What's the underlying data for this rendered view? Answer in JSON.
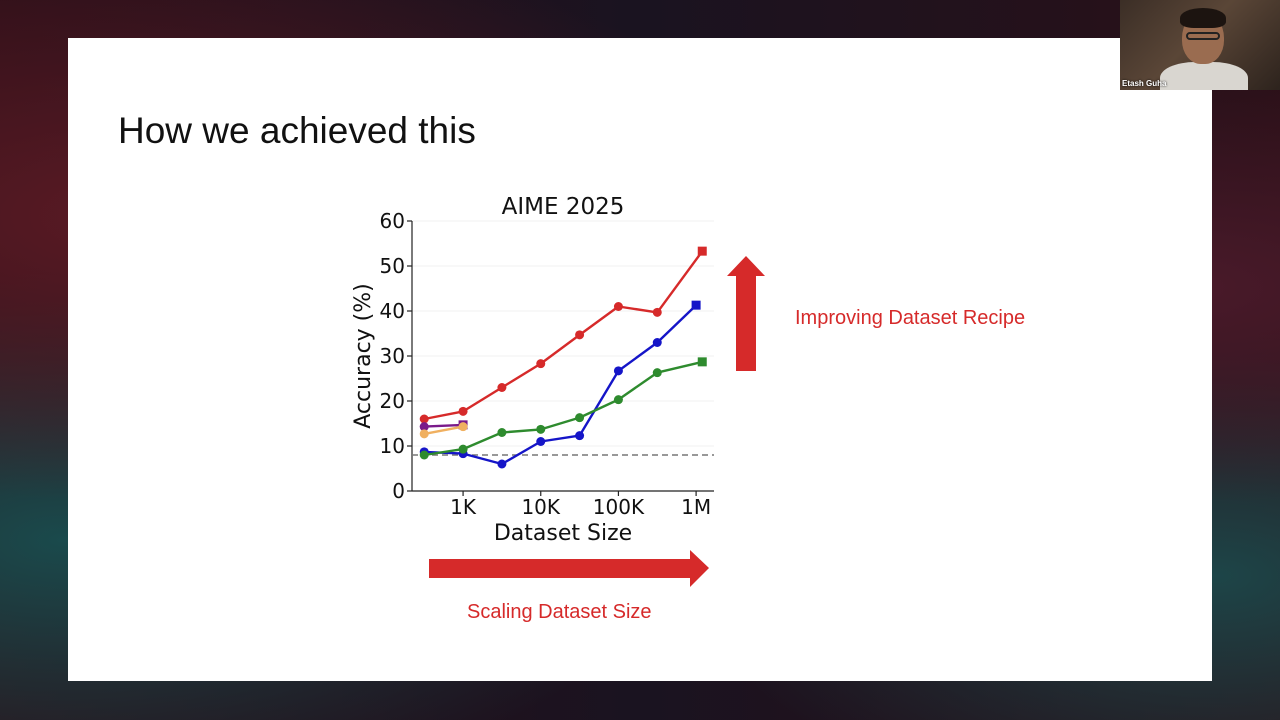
{
  "slide": {
    "title": "How we achieved this",
    "recipe_arrow_label": "Improving Dataset Recipe",
    "scaling_arrow_label": "Scaling Dataset Size"
  },
  "video": {
    "participant_name": "Etash Guha"
  },
  "colors": {
    "accent_red": "#d62a2a",
    "series_red": "#d62a2a",
    "series_blue": "#1515c8",
    "series_green": "#2e8b2e",
    "series_purple": "#7a1a8a",
    "series_orange": "#f0b060"
  },
  "chart_data": {
    "type": "line",
    "title": "AIME 2025",
    "xlabel": "Dataset Size",
    "ylabel": "Accuracy (%)",
    "x_scale": "log",
    "xlim": [
      220,
      1700000
    ],
    "ylim": [
      0,
      60
    ],
    "x_ticks": [
      {
        "value": 1000,
        "label": "1K"
      },
      {
        "value": 10000,
        "label": "10K"
      },
      {
        "value": 100000,
        "label": "100K"
      },
      {
        "value": 1000000,
        "label": "1M"
      }
    ],
    "y_ticks": [
      0,
      10,
      20,
      30,
      40,
      50,
      60
    ],
    "baseline": 8,
    "grid": "horizontal",
    "series": [
      {
        "color": "#d62a2a",
        "x": [
          316,
          1000,
          3162,
          10000,
          31623,
          100000,
          316228,
          1200000
        ],
        "y": [
          16,
          17.7,
          23,
          28.3,
          34.7,
          41,
          39.7,
          53.3
        ],
        "last_marker": "square"
      },
      {
        "color": "#1515c8",
        "x": [
          316,
          1000,
          3162,
          10000,
          31623,
          100000,
          316228,
          1000000
        ],
        "y": [
          8.7,
          8.3,
          6,
          11,
          12.3,
          26.7,
          33,
          41.3
        ],
        "last_marker": "square"
      },
      {
        "color": "#2e8b2e",
        "x": [
          316,
          1000,
          3162,
          10000,
          31623,
          100000,
          316228,
          1200000
        ],
        "y": [
          8,
          9.3,
          13,
          13.7,
          16.3,
          20.3,
          26.3,
          28.7
        ],
        "last_marker": "square"
      },
      {
        "color": "#7a1a8a",
        "x": [
          316,
          1000
        ],
        "y": [
          14.3,
          14.7
        ],
        "last_marker": "square"
      },
      {
        "color": "#f0b060",
        "x": [
          316,
          1000
        ],
        "y": [
          12.7,
          14.3
        ],
        "last_marker": "circle"
      }
    ]
  }
}
